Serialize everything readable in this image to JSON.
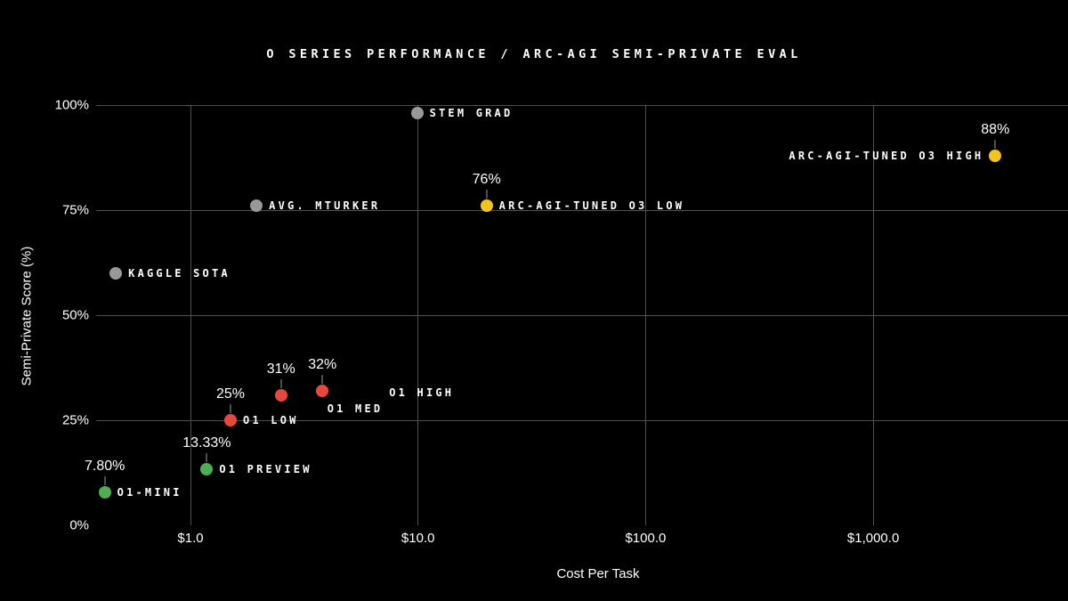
{
  "title": "O SERIES PERFORMANCE / ARC-AGI SEMI-PRIVATE EVAL",
  "chart_data": {
    "type": "scatter",
    "title": "O SERIES PERFORMANCE / ARC-AGI SEMI-PRIVATE EVAL",
    "xlabel": "Cost Per Task",
    "ylabel": "Semi-Private Score (%)",
    "x_scale": "log",
    "y_range": [
      0,
      100
    ],
    "grid": true,
    "background_color": "#000000",
    "gridline_color": "#4f4f4f",
    "text_color": "#ffffff",
    "x_ticks": [
      {
        "value": 1,
        "label": "$1.0"
      },
      {
        "value": 10,
        "label": "$10.0"
      },
      {
        "value": 100,
        "label": "$100.0"
      },
      {
        "value": 1000,
        "label": "$1,000.0"
      }
    ],
    "y_ticks": [
      {
        "value": 0,
        "label": "0%",
        "gridline": false
      },
      {
        "value": 25,
        "label": "25%",
        "gridline": true
      },
      {
        "value": 50,
        "label": "50%",
        "gridline": true
      },
      {
        "value": 75,
        "label": "75%",
        "gridline": true
      },
      {
        "value": 100,
        "label": "100%",
        "gridline": true
      }
    ],
    "group_colors": {
      "human-baseline": "#999999",
      "o1-early": "#4caf50",
      "o1": "#e8473b",
      "o3-tuned": "#f2c41c"
    },
    "points": [
      {
        "name": "O1-MINI",
        "group": "o1-early",
        "cost": 0.42,
        "score": 7.8,
        "score_label": "7.80%",
        "color": "#4caf50",
        "label_side": "right"
      },
      {
        "name": "O1 PREVIEW",
        "group": "o1-early",
        "cost": 1.18,
        "score": 13.33,
        "score_label": "13.33%",
        "color": "#4caf50",
        "label_side": "right"
      },
      {
        "name": "O1 LOW",
        "group": "o1",
        "cost": 1.5,
        "score": 25,
        "score_label": "25%",
        "color": "#e8473b",
        "label_side": "right"
      },
      {
        "name": "O1 MED",
        "group": "o1",
        "cost": 2.5,
        "score": 31,
        "score_label": "31%",
        "color": "#e8473b",
        "label_side": "right",
        "name_dx": 52,
        "name_dy": 15
      },
      {
        "name": "O1 HIGH",
        "group": "o1",
        "cost": 3.8,
        "score": 32,
        "score_label": "32%",
        "color": "#e8473b",
        "label_side": "right",
        "name_dx": 75,
        "name_dy": 2
      },
      {
        "name": "ARC-AGI-TUNED O3 LOW",
        "group": "o3-tuned",
        "cost": 20,
        "score": 76,
        "score_label": "76%",
        "color": "#f2c41c",
        "label_side": "right"
      },
      {
        "name": "ARC-AGI-TUNED O3 HIGH",
        "group": "o3-tuned",
        "cost": 3440,
        "score": 88,
        "score_label": "88%",
        "color": "#f2c41c",
        "label_side": "left"
      },
      {
        "name": "KAGGLE SOTA",
        "group": "human-baseline",
        "cost": 0.47,
        "score": 60,
        "score_label": null,
        "color": "#999999",
        "label_side": "right"
      },
      {
        "name": "AVG. MTURKER",
        "group": "human-baseline",
        "cost": 1.95,
        "score": 76,
        "score_label": null,
        "color": "#999999",
        "label_side": "right"
      },
      {
        "name": "STEM GRAD",
        "group": "human-baseline",
        "cost": 9.9,
        "score": 98,
        "score_label": null,
        "color": "#999999",
        "label_side": "right"
      }
    ]
  }
}
